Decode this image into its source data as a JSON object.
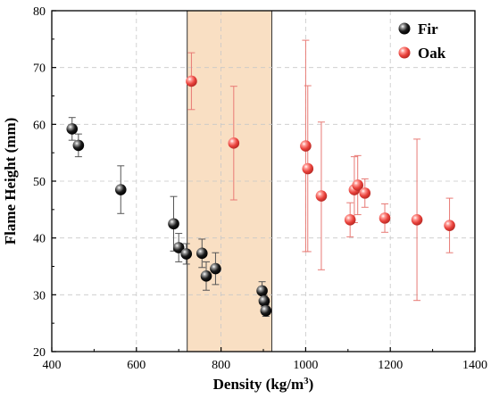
{
  "chart_data": {
    "type": "scatter",
    "xlabel": "Density (kg/m³)",
    "xlabel_main": "Density (kg/m",
    "xlabel_sup": "3",
    "xlabel_end": ")",
    "ylabel": "Flame Height (mm)",
    "xlim": [
      400,
      1400
    ],
    "ylim": [
      20,
      80
    ],
    "xticks": [
      400,
      600,
      800,
      1000,
      1200,
      1400
    ],
    "yticks": [
      20,
      30,
      40,
      50,
      60,
      70,
      80
    ],
    "grid": true,
    "legend_position": "top-right",
    "highlight_band": {
      "x0": 720,
      "x1": 920,
      "color": "#f8d9b8"
    },
    "series": [
      {
        "name": "Fir",
        "color": "#111111",
        "error_color": "#555555",
        "points": [
          {
            "x": 448,
            "y": 59.2,
            "err": 2.0
          },
          {
            "x": 463,
            "y": 56.3,
            "err": 2.0
          },
          {
            "x": 563,
            "y": 48.5,
            "err": 4.2
          },
          {
            "x": 688,
            "y": 42.5,
            "err": 4.8
          },
          {
            "x": 700,
            "y": 38.3,
            "err": 2.5
          },
          {
            "x": 718,
            "y": 37.2,
            "err": 1.8
          },
          {
            "x": 755,
            "y": 37.3,
            "err": 2.5
          },
          {
            "x": 765,
            "y": 33.3,
            "err": 2.5
          },
          {
            "x": 787,
            "y": 34.6,
            "err": 2.8
          },
          {
            "x": 897,
            "y": 30.7,
            "err": 1.6
          },
          {
            "x": 902,
            "y": 28.9,
            "err": 1.0
          },
          {
            "x": 906,
            "y": 27.2,
            "err": 1.0
          }
        ]
      },
      {
        "name": "Oak",
        "color": "#e8504a",
        "error_color": "#e87a75",
        "points": [
          {
            "x": 730,
            "y": 67.6,
            "err": 5.0
          },
          {
            "x": 830,
            "y": 56.7,
            "err": 10.0
          },
          {
            "x": 1000,
            "y": 56.2,
            "err": 18.6
          },
          {
            "x": 1005,
            "y": 52.2,
            "err": 14.6
          },
          {
            "x": 1037,
            "y": 47.4,
            "err": 13.0
          },
          {
            "x": 1105,
            "y": 43.2,
            "err": 3.0
          },
          {
            "x": 1115,
            "y": 48.5,
            "err": 5.8
          },
          {
            "x": 1123,
            "y": 49.3,
            "err": 5.2
          },
          {
            "x": 1140,
            "y": 47.9,
            "err": 2.5
          },
          {
            "x": 1187,
            "y": 43.5,
            "err": 2.5
          },
          {
            "x": 1263,
            "y": 43.2,
            "err": 14.2
          },
          {
            "x": 1340,
            "y": 42.2,
            "err": 4.8
          }
        ]
      }
    ]
  }
}
